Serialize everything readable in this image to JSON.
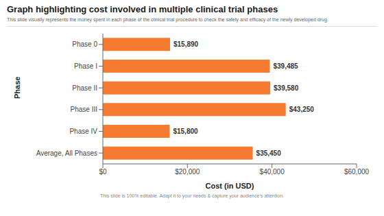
{
  "chart_data": {
    "type": "bar",
    "title": "Graph highlighting cost involved in multiple clinical trial phases",
    "subtitle": "This slide visually represents the money spent in each phase of the clinical trial procedure to check the safety and efficacy of the newly developed drug.",
    "footnote": "This slide is 100% editable. Adapt it to your needs & capture your audience’s attention.",
    "categories": [
      "Phase 0",
      "Phase I",
      "Phase II",
      "Phase III",
      "Phase IV",
      "Average, All Phases"
    ],
    "values": [
      15890,
      39485,
      39580,
      43250,
      15800,
      35450
    ],
    "value_labels": [
      "$15,890",
      "$39,485",
      "$39,580",
      "$43,250",
      "$15,800",
      "$35,450"
    ],
    "data_labels": true,
    "orientation": "horizontal",
    "color": "#F47B30",
    "xlabel": "Cost (in USD)",
    "ylabel": "Phase",
    "xlim": [
      0,
      60000
    ],
    "xticks": [
      {
        "value": 0,
        "label": "$0"
      },
      {
        "value": 20000,
        "label": "$20,000"
      },
      {
        "value": 40000,
        "label": "$40,000"
      },
      {
        "value": 60000,
        "label": "$60,000"
      }
    ],
    "grid": false
  }
}
